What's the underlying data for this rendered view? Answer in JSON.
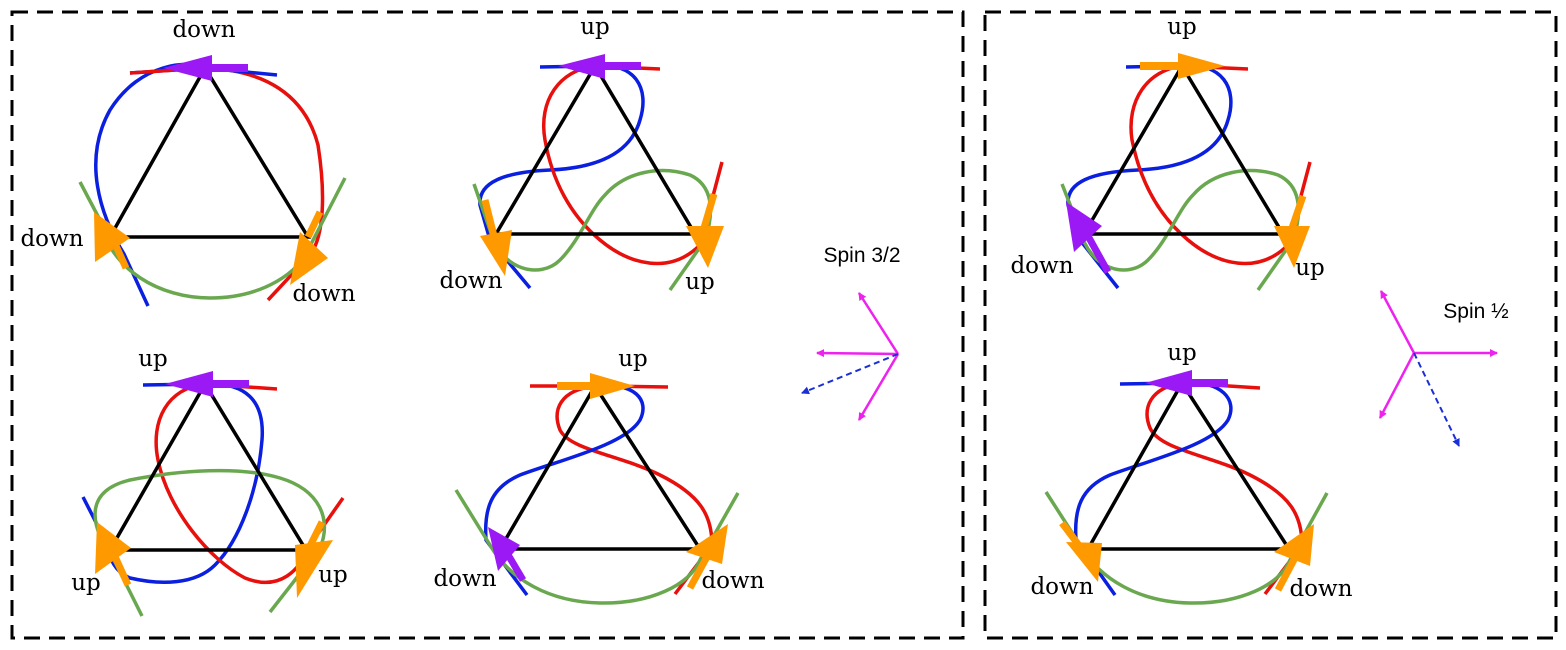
{
  "colors": {
    "frame": "#000000",
    "triangle": "#000000",
    "loop_blue": "#0a1fe0",
    "loop_red": "#e8100c",
    "loop_green": "#6aa84f",
    "spin_purple": "#9b19f5",
    "spin_orange": "#ff9900",
    "basis_arrows": "#ee22ee",
    "dashed_arrow": "#1a2fd8"
  },
  "panels": [
    {
      "id": "spin-three-halves",
      "title": "Spin 3/2",
      "configs": [
        {
          "id": "a",
          "labels": {
            "top": "down",
            "left": "down",
            "right": "down"
          },
          "arrows": {
            "top": "purple",
            "left": "orange",
            "right": "orange"
          }
        },
        {
          "id": "b",
          "labels": {
            "top": "up",
            "left": "down",
            "right": "up"
          },
          "arrows": {
            "top": "purple",
            "left": "orange",
            "right": "orange"
          }
        },
        {
          "id": "c",
          "labels": {
            "top": "up",
            "left": "up",
            "right": "up"
          },
          "arrows": {
            "top": "purple",
            "left": "orange",
            "right": "orange"
          }
        },
        {
          "id": "d",
          "labels": {
            "top": "up",
            "left": "down",
            "right": "down"
          },
          "arrows": {
            "top": "orange",
            "left": "purple",
            "right": "orange"
          }
        }
      ]
    },
    {
      "id": "spin-half",
      "title": "Spin ½",
      "configs": [
        {
          "id": "e",
          "labels": {
            "top": "up",
            "left": "down",
            "right": "up"
          },
          "arrows": {
            "top": "orange",
            "left": "purple",
            "right": "orange"
          }
        },
        {
          "id": "f",
          "labels": {
            "top": "up",
            "left": "down",
            "right": "down"
          },
          "arrows": {
            "top": "purple",
            "left": "orange",
            "right": "orange"
          }
        }
      ]
    }
  ]
}
